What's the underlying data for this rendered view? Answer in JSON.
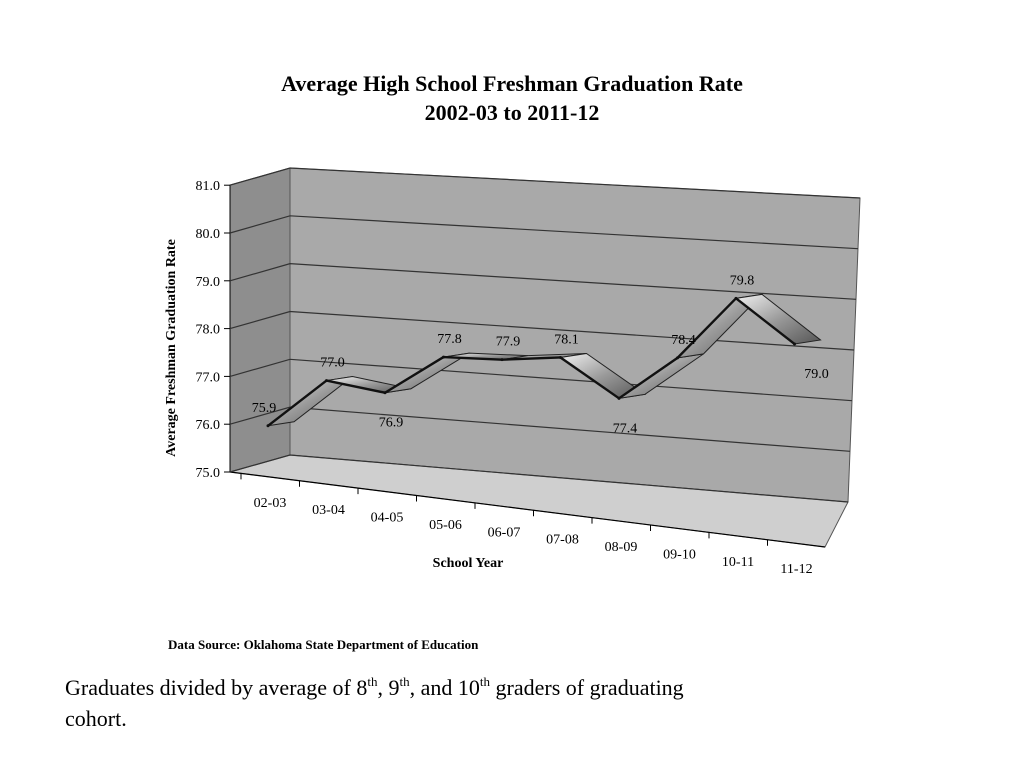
{
  "chart_data": {
    "type": "line",
    "title": "Average High School Freshman Graduation Rate",
    "subtitle": "2002-03 to 2011-12",
    "xlabel": "School Year",
    "ylabel": "Average Freshman Graduation Rate",
    "categories": [
      "02-03",
      "03-04",
      "04-05",
      "05-06",
      "06-07",
      "07-08",
      "08-09",
      "09-10",
      "10-11",
      "11-12"
    ],
    "values": [
      75.9,
      77.0,
      76.9,
      77.8,
      77.9,
      78.1,
      77.4,
      78.4,
      79.8,
      79.0
    ],
    "data_labels": [
      "75.9",
      "77.0",
      "76.9",
      "77.8",
      "77.9",
      "78.1",
      "77.4",
      "78.4",
      "79.8",
      "79.0"
    ],
    "y_ticks": [
      "75.0",
      "76.0",
      "77.0",
      "78.0",
      "79.0",
      "80.0",
      "81.0"
    ],
    "ylim": [
      75.0,
      81.0
    ],
    "grid": true,
    "style": "3d-ribbon",
    "colors": {
      "wall": "#a9a9a9",
      "wall_side": "#8e8e8e",
      "floor": "#cfcfcf",
      "ribbon": "#bdbdbd"
    }
  },
  "source_note": "Data Source:  Oklahoma State Department of Education",
  "footnote": {
    "part1": "Graduates divided by average of 8",
    "sup1": "th",
    "part2": ", 9",
    "sup2": "th",
    "part3": ", and 10",
    "sup3": "th",
    "part4": " graders of graduating cohort."
  }
}
